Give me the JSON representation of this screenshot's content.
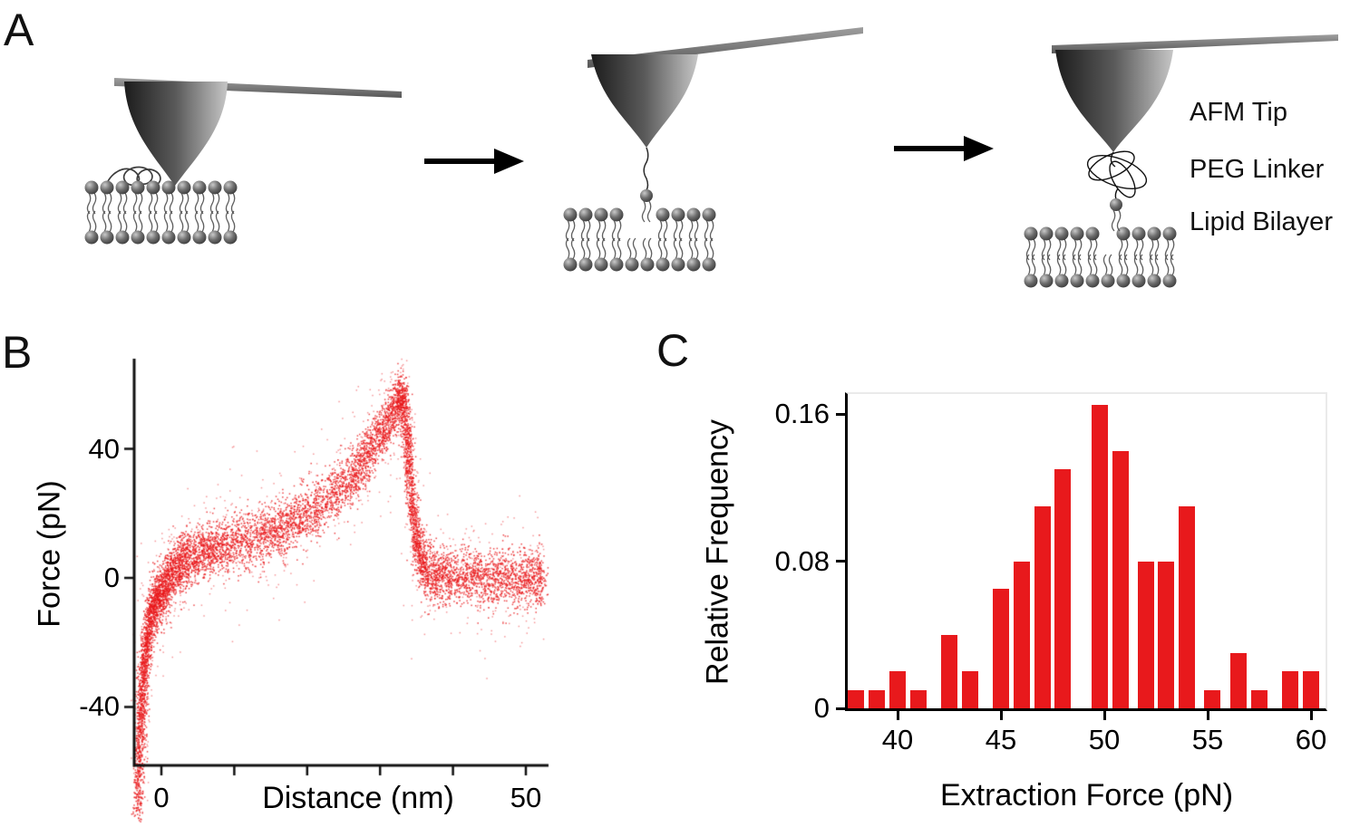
{
  "figure_colors": {
    "accent_red": "#e8191c",
    "ink": "#000000"
  },
  "panels": {
    "a": "A",
    "b": "B",
    "c": "C"
  },
  "panel_a": {
    "labels": {
      "afm_tip": "AFM Tip",
      "peg_linker": "PEG Linker",
      "lipid_bilayer": "Lipid Bilayer"
    }
  },
  "chart_data": [
    {
      "id": "force-distance-curve",
      "type": "scatter",
      "xlabel": "Distance (nm)",
      "ylabel": "Force (pN)",
      "xlim": [
        -4,
        53
      ],
      "ylim": [
        -75,
        65
      ],
      "xticks_labeled": [
        {
          "value": 0,
          "label": "0"
        },
        {
          "value": 50,
          "label": "50"
        }
      ],
      "xticks_minor": [
        10,
        20,
        30,
        40
      ],
      "yticks": [
        {
          "value": 40,
          "label": "40"
        },
        {
          "value": 0,
          "label": "0"
        },
        {
          "value": -40,
          "label": "-40"
        }
      ],
      "color": "#e8191c",
      "n_points": 9000,
      "noise": {
        "sigma_x": 0.35,
        "sigma_y": 4.3
      },
      "curve_anchors": [
        [
          -3.3,
          -72
        ],
        [
          -3.1,
          -58
        ],
        [
          -2.9,
          -46
        ],
        [
          -2.7,
          -36
        ],
        [
          -2.4,
          -27
        ],
        [
          -2.1,
          -20
        ],
        [
          -1.7,
          -14
        ],
        [
          -1.2,
          -9
        ],
        [
          -0.6,
          -6
        ],
        [
          0,
          -4
        ],
        [
          0.8,
          -1
        ],
        [
          1.6,
          2
        ],
        [
          2.5,
          4
        ],
        [
          3.5,
          6
        ],
        [
          5,
          7.5
        ],
        [
          6.5,
          8.5
        ],
        [
          8,
          9.5
        ],
        [
          10,
          11
        ],
        [
          12,
          12
        ],
        [
          14,
          13.5
        ],
        [
          16,
          15
        ],
        [
          18,
          17.5
        ],
        [
          20,
          20
        ],
        [
          22,
          23.5
        ],
        [
          24,
          27
        ],
        [
          26,
          31.5
        ],
        [
          27.5,
          36
        ],
        [
          29,
          41
        ],
        [
          30.5,
          47
        ],
        [
          31.7,
          52
        ],
        [
          32.6,
          56
        ],
        [
          33.2,
          54
        ],
        [
          33.7,
          43
        ],
        [
          34.1,
          30
        ],
        [
          34.6,
          17
        ],
        [
          35.2,
          8
        ],
        [
          36,
          3
        ],
        [
          37.5,
          1
        ],
        [
          39,
          0.5
        ],
        [
          41,
          0
        ],
        [
          43,
          0.5
        ],
        [
          45,
          -0.5
        ],
        [
          47,
          0.5
        ],
        [
          49,
          0
        ],
        [
          51,
          0.5
        ],
        [
          52.2,
          0
        ]
      ]
    },
    {
      "id": "extraction-force-histogram",
      "type": "bar",
      "xlabel": "Extraction Force (pN)",
      "ylabel": "Relative Frequency",
      "bin_width": 1,
      "bin_centers": [
        38,
        39,
        40,
        41,
        42.5,
        43.5,
        45,
        46,
        47,
        48,
        49.8,
        50.8,
        52,
        53,
        54,
        55.2,
        56.5,
        57.5,
        59,
        60
      ],
      "values": [
        0.01,
        0.01,
        0.02,
        0.01,
        0.04,
        0.02,
        0.065,
        0.08,
        0.11,
        0.13,
        0.165,
        0.14,
        0.08,
        0.08,
        0.11,
        0.01,
        0.03,
        0.01,
        0.02,
        0.02
      ],
      "xticks": [
        {
          "value": 40,
          "label": "40"
        },
        {
          "value": 45,
          "label": "45"
        },
        {
          "value": 50,
          "label": "50"
        },
        {
          "value": 55,
          "label": "55"
        },
        {
          "value": 60,
          "label": "60"
        }
      ],
      "yticks": [
        {
          "value": 0,
          "label": "0"
        },
        {
          "value": 0.08,
          "label": "0.08"
        },
        {
          "value": 0.16,
          "label": "0.16"
        }
      ],
      "xlim": [
        37.6,
        61
      ],
      "ylim": [
        0,
        0.175
      ],
      "color": "#e8191c"
    }
  ]
}
